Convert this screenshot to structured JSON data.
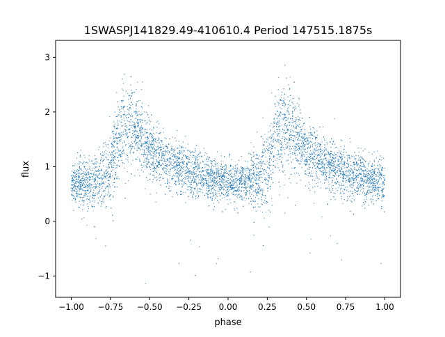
{
  "chart_data": {
    "type": "scatter",
    "title": "1SWASPJ141829.49-410610.4 Period 147515.1875s",
    "xlabel": "phase",
    "ylabel": "flux",
    "xlim": [
      -1.1,
      1.1
    ],
    "ylim": [
      -1.39,
      3.31
    ],
    "xticks": [
      -1.0,
      -0.75,
      -0.5,
      -0.25,
      0.0,
      0.25,
      0.5,
      0.75,
      1.0
    ],
    "xtick_labels": [
      "−1.00",
      "−0.75",
      "−0.50",
      "−0.25",
      "0.00",
      "0.25",
      "0.50",
      "0.75",
      "1.00"
    ],
    "yticks": [
      -1,
      0,
      1,
      2,
      3
    ],
    "ytick_labels": [
      "−1",
      "0",
      "1",
      "2",
      "3"
    ],
    "grid": false,
    "marker_color": "#1f77b4",
    "folded_profile": {
      "note_phase_mod_1": true,
      "phase": [
        0.0,
        0.1,
        0.2,
        0.25,
        0.3,
        0.35,
        0.4,
        0.45,
        0.5,
        0.6,
        0.7,
        0.8,
        0.9,
        1.0
      ],
      "mean_flux": [
        0.72,
        0.7,
        0.78,
        0.95,
        1.6,
        1.75,
        1.7,
        1.55,
        1.3,
        1.1,
        0.95,
        0.85,
        0.76,
        0.72
      ],
      "spread": [
        0.2,
        0.2,
        0.25,
        0.35,
        0.4,
        0.4,
        0.38,
        0.32,
        0.28,
        0.25,
        0.23,
        0.22,
        0.2,
        0.2
      ]
    }
  }
}
